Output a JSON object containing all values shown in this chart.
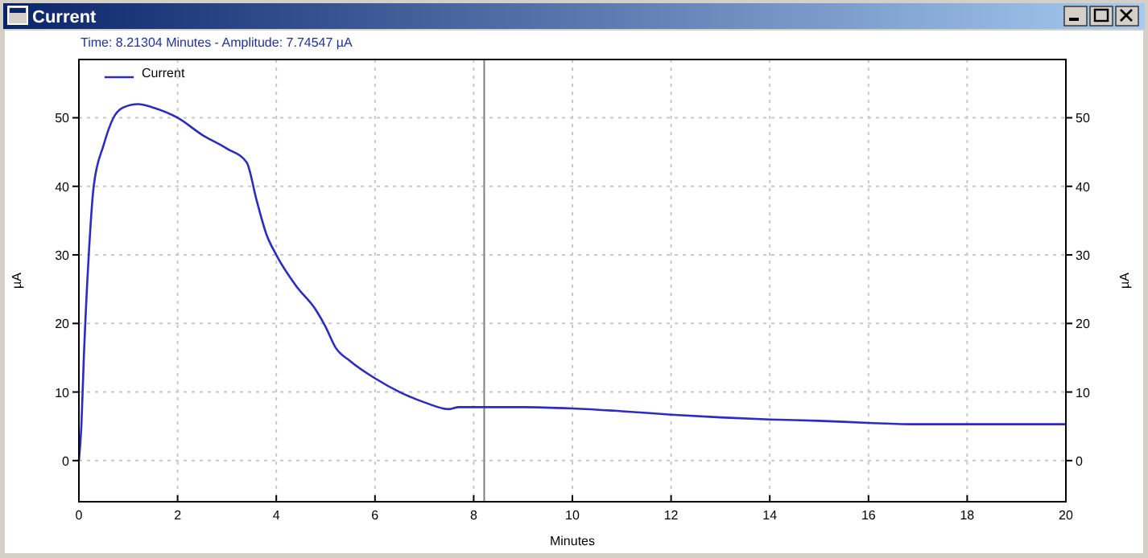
{
  "chart_data": {
    "type": "line",
    "title": "Current",
    "subtitle": "Time:  8.21304 Minutes - Amplitude:  7.74547 µA",
    "xlabel": "Minutes",
    "ylabel": "µA",
    "y2label": "µA",
    "x": [
      0,
      0.05,
      0.1,
      0.2,
      0.3,
      0.5,
      0.7,
      0.9,
      1.2,
      1.5,
      2,
      2.5,
      3,
      3.4,
      3.6,
      3.8,
      4,
      4.4,
      4.8,
      5,
      5.2,
      5.5,
      6,
      6.5,
      7,
      7.5,
      7.7,
      8,
      9,
      10,
      11,
      12,
      13,
      14,
      15,
      16,
      17,
      18,
      20
    ],
    "series": [
      {
        "name": "Current",
        "color": "#2b2bc8",
        "values": [
          0,
          5,
          15,
          30,
          40,
          46,
          50,
          51.5,
          52,
          51.5,
          50,
          47.5,
          45.5,
          43.5,
          38,
          33,
          30,
          25.5,
          22,
          19.5,
          16.5,
          14.5,
          12,
          10,
          8.5,
          7.5,
          7.8,
          7.8,
          7.8,
          7.6,
          7.2,
          6.7,
          6.3,
          6,
          5.8,
          5.5,
          5.3,
          5.3,
          5.3
        ]
      }
    ],
    "xlim": [
      0,
      20
    ],
    "xticks": [
      0,
      2,
      4,
      6,
      8,
      10,
      12,
      14,
      16,
      18,
      20
    ],
    "ylim": [
      -6,
      58.5
    ],
    "yticks": [
      0,
      10,
      20,
      30,
      40,
      50
    ],
    "y2lim": [
      -6,
      58.5
    ],
    "y2ticks": [
      0,
      10,
      20,
      30,
      40,
      50
    ],
    "ref_lines": [
      {
        "axis": "x",
        "value": 8.21304,
        "color": "#808080"
      }
    ],
    "grid": true,
    "legend": "top left",
    "line_style": "solid"
  }
}
